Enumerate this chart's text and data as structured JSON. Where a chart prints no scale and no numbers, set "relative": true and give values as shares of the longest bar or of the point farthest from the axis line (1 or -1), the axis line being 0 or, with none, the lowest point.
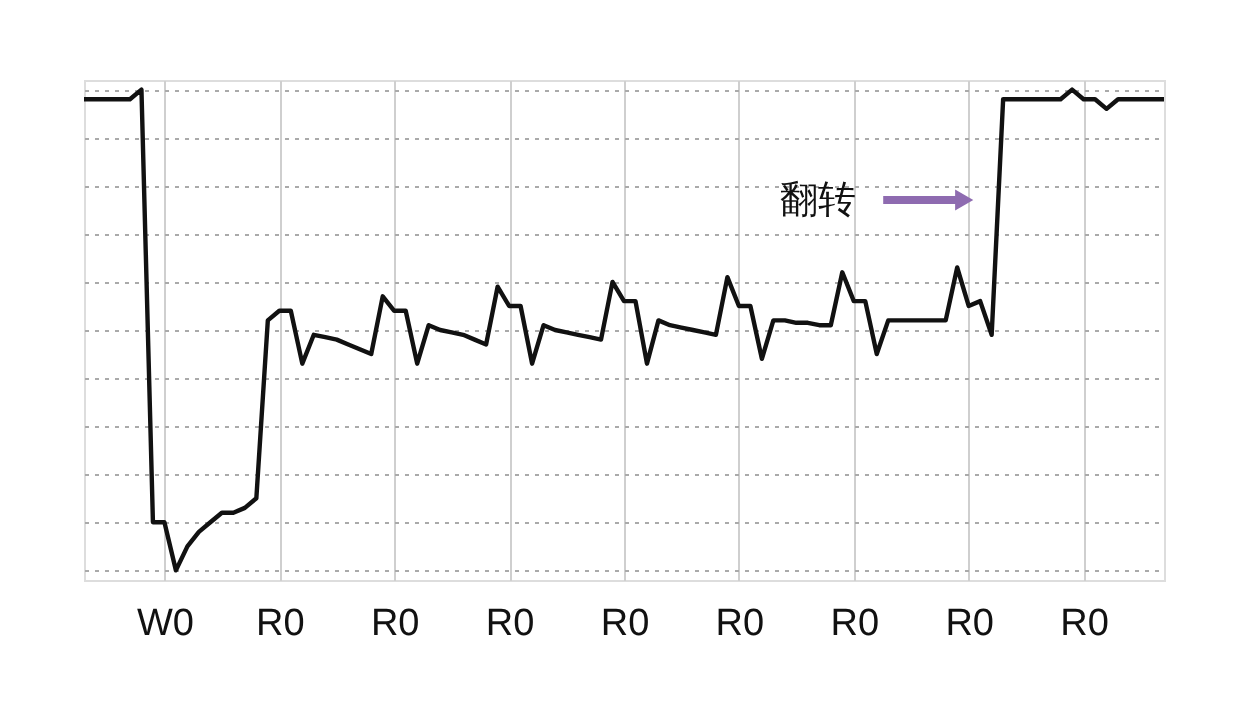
{
  "chart_data": {
    "type": "line",
    "relative": true,
    "categories": [
      null,
      null,
      null,
      null,
      null,
      null,
      null,
      "W0",
      null,
      null,
      null,
      null,
      null,
      null,
      null,
      null,
      null,
      "R0",
      null,
      null,
      null,
      null,
      null,
      null,
      null,
      null,
      null,
      "R0",
      null,
      null,
      null,
      null,
      null,
      null,
      null,
      null,
      null,
      "R0",
      null,
      null,
      null,
      null,
      null,
      null,
      null,
      null,
      null,
      "R0",
      null,
      null,
      null,
      null,
      null,
      null,
      null,
      null,
      null,
      "R0",
      null,
      null,
      null,
      null,
      null,
      null,
      null,
      null,
      null,
      "R0",
      null,
      null,
      null,
      null,
      null,
      null,
      null,
      null,
      null,
      "R0",
      null,
      null,
      null,
      null,
      null,
      null,
      null,
      null,
      null,
      "R0",
      null,
      null,
      null,
      null,
      null,
      null,
      null
    ],
    "series": [
      {
        "color": "#111111",
        "values": [
          0.98,
          0.98,
          0.98,
          0.98,
          0.98,
          1.0,
          0.1,
          0.1,
          0.0,
          0.05,
          0.08,
          0.1,
          0.12,
          0.12,
          0.13,
          0.15,
          0.52,
          0.54,
          0.54,
          0.43,
          0.49,
          0.485,
          0.48,
          0.47,
          0.46,
          0.45,
          0.57,
          0.54,
          0.54,
          0.43,
          0.51,
          0.5,
          0.495,
          0.49,
          0.48,
          0.47,
          0.59,
          0.55,
          0.55,
          0.43,
          0.51,
          0.5,
          0.495,
          0.49,
          0.485,
          0.48,
          0.6,
          0.56,
          0.56,
          0.43,
          0.52,
          0.51,
          0.505,
          0.5,
          0.495,
          0.49,
          0.61,
          0.55,
          0.55,
          0.44,
          0.52,
          0.52,
          0.515,
          0.515,
          0.51,
          0.51,
          0.62,
          0.56,
          0.56,
          0.45,
          0.52,
          0.52,
          0.52,
          0.52,
          0.52,
          0.52,
          0.63,
          0.55,
          0.56,
          0.49,
          0.98,
          0.98,
          0.98,
          0.98,
          0.98,
          0.98,
          1.0,
          0.98,
          0.98,
          0.96,
          0.98,
          0.98,
          0.98,
          0.98,
          0.98
        ]
      }
    ],
    "annotations": [
      "翻转"
    ],
    "grid": true,
    "line_style": "solid",
    "marker": "none"
  }
}
